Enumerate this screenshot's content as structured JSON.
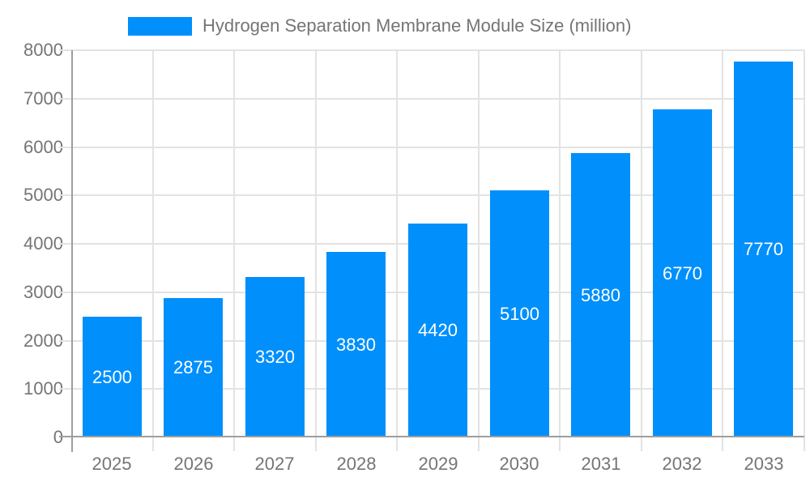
{
  "legend": {
    "label": "Hydrogen Separation Membrane Module Size (million)",
    "position": "top"
  },
  "chart_data": {
    "type": "bar",
    "title": "Hydrogen Separation Membrane Module Size (million)",
    "categories": [
      "2025",
      "2026",
      "2027",
      "2028",
      "2029",
      "2030",
      "2031",
      "2032",
      "2033"
    ],
    "values": [
      2500,
      2875,
      3320,
      3830,
      4420,
      5100,
      5880,
      6770,
      7770
    ],
    "bar_labels": [
      "2500",
      "2875",
      "3320",
      "3830",
      "4420",
      "5100",
      "5880",
      "6770",
      "7770"
    ],
    "xlabel": "",
    "ylabel": "",
    "ylim": [
      0,
      8000
    ],
    "yticks": [
      0,
      1000,
      2000,
      3000,
      4000,
      5000,
      6000,
      7000,
      8000
    ],
    "grid": true,
    "legend_position": "top",
    "colors": {
      "bar": "#008FFB",
      "grid": "#e3e3e3",
      "axis": "#9e9e9e",
      "tick_label": "#757575",
      "bar_label": "#ffffff",
      "background": "#ffffff"
    }
  }
}
